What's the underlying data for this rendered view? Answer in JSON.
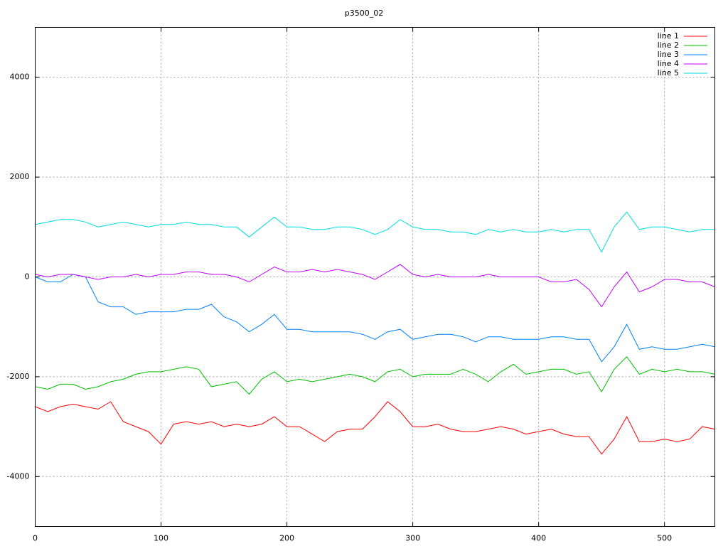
{
  "chart_data": {
    "type": "line",
    "title": "p3500_02",
    "x": [
      0,
      10,
      20,
      30,
      40,
      50,
      60,
      70,
      80,
      90,
      100,
      110,
      120,
      130,
      140,
      150,
      160,
      170,
      180,
      190,
      200,
      210,
      220,
      230,
      240,
      250,
      260,
      270,
      280,
      290,
      300,
      310,
      320,
      330,
      340,
      350,
      360,
      370,
      380,
      390,
      400,
      410,
      420,
      430,
      440,
      450,
      460,
      470,
      480,
      490,
      500,
      510,
      520,
      530,
      540
    ],
    "series": [
      {
        "name": "line 1",
        "color": "#ff0000",
        "values": [
          -2600,
          -2700,
          -2600,
          -2550,
          -2600,
          -2650,
          -2500,
          -2900,
          -3000,
          -3100,
          -3350,
          -2950,
          -2900,
          -2950,
          -2900,
          -3000,
          -2950,
          -3000,
          -2950,
          -2800,
          -3000,
          -3000,
          -3150,
          -3300,
          -3100,
          -3050,
          -3050,
          -2800,
          -2500,
          -2700,
          -3000,
          -3000,
          -2950,
          -3050,
          -3100,
          -3100,
          -3050,
          -3000,
          -3050,
          -3150,
          -3100,
          -3050,
          -3150,
          -3200,
          -3200,
          -3550,
          -3250,
          -2800,
          -3300,
          -3300,
          -3250,
          -3300,
          -3250,
          -3000,
          -3050
        ]
      },
      {
        "name": "line 2",
        "color": "#00c000",
        "values": [
          -2200,
          -2250,
          -2150,
          -2150,
          -2250,
          -2200,
          -2100,
          -2050,
          -1950,
          -1900,
          -1900,
          -1850,
          -1800,
          -1850,
          -2200,
          -2150,
          -2100,
          -2350,
          -2050,
          -1900,
          -2100,
          -2050,
          -2100,
          -2050,
          -2000,
          -1950,
          -2000,
          -2100,
          -1900,
          -1850,
          -2000,
          -1950,
          -1950,
          -1950,
          -1850,
          -1950,
          -2100,
          -1900,
          -1750,
          -1950,
          -1900,
          -1850,
          -1850,
          -1950,
          -1900,
          -2300,
          -1850,
          -1600,
          -1950,
          -1850,
          -1900,
          -1850,
          -1900,
          -1900,
          -1950
        ]
      },
      {
        "name": "line 3",
        "color": "#0080ff",
        "values": [
          0,
          -100,
          -100,
          50,
          0,
          -500,
          -600,
          -600,
          -750,
          -700,
          -700,
          -700,
          -650,
          -650,
          -550,
          -800,
          -900,
          -1100,
          -950,
          -750,
          -1050,
          -1050,
          -1100,
          -1100,
          -1100,
          -1100,
          -1150,
          -1250,
          -1100,
          -1050,
          -1250,
          -1200,
          -1150,
          -1150,
          -1200,
          -1300,
          -1200,
          -1200,
          -1250,
          -1250,
          -1250,
          -1200,
          -1200,
          -1250,
          -1250,
          -1700,
          -1400,
          -950,
          -1450,
          -1400,
          -1450,
          -1450,
          -1400,
          -1350,
          -1400
        ]
      },
      {
        "name": "line 4",
        "color": "#c000ff",
        "values": [
          50,
          0,
          50,
          50,
          0,
          -50,
          0,
          0,
          50,
          0,
          50,
          50,
          100,
          100,
          50,
          50,
          0,
          -100,
          50,
          200,
          100,
          100,
          150,
          100,
          150,
          100,
          50,
          -50,
          100,
          250,
          50,
          0,
          50,
          0,
          0,
          0,
          50,
          0,
          0,
          0,
          0,
          -100,
          -100,
          -50,
          -250,
          -600,
          -200,
          100,
          -300,
          -200,
          -50,
          -50,
          -100,
          -100,
          -200
        ]
      },
      {
        "name": "line 5",
        "color": "#00dddd",
        "values": [
          1050,
          1100,
          1150,
          1150,
          1100,
          1000,
          1050,
          1100,
          1050,
          1000,
          1050,
          1050,
          1100,
          1050,
          1050,
          1000,
          1000,
          800,
          1000,
          1200,
          1000,
          1000,
          950,
          950,
          1000,
          1000,
          950,
          850,
          950,
          1150,
          1000,
          950,
          950,
          900,
          900,
          850,
          950,
          900,
          950,
          900,
          900,
          950,
          900,
          950,
          950,
          500,
          1000,
          1300,
          950,
          1000,
          1000,
          950,
          900,
          950,
          950
        ]
      }
    ],
    "xlim": [
      0,
      540
    ],
    "xticks": [
      0,
      100,
      200,
      300,
      400,
      500
    ],
    "ylim": [
      -5000,
      5000
    ],
    "yticks": [
      -4000,
      -2000,
      0,
      2000,
      4000
    ],
    "grid": true,
    "legend": "top-right"
  }
}
